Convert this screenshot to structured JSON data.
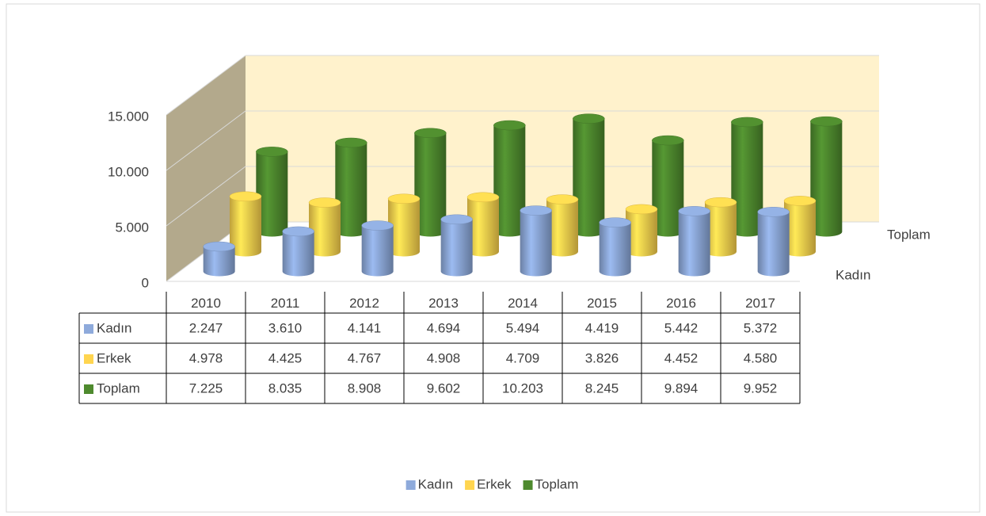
{
  "chart_data": {
    "type": "bar3d",
    "categories": [
      "2010",
      "2011",
      "2012",
      "2013",
      "2014",
      "2015",
      "2016",
      "2017"
    ],
    "series": [
      {
        "name": "Kadın",
        "color": "#8eaadb",
        "values": [
          2247,
          3610,
          4141,
          4694,
          5494,
          4419,
          5442,
          5372
        ],
        "value_labels": [
          "2.247",
          "3.610",
          "4.141",
          "4.694",
          "5.494",
          "4.419",
          "5.442",
          "5.372"
        ]
      },
      {
        "name": "Erkek",
        "color": "#ffd54f",
        "values": [
          4978,
          4425,
          4767,
          4908,
          4709,
          3826,
          4452,
          4580
        ],
        "value_labels": [
          "4.978",
          "4.425",
          "4.767",
          "4.908",
          "4.709",
          "3.826",
          "4.452",
          "4.580"
        ]
      },
      {
        "name": "Toplam",
        "color": "#4e8a2e",
        "values": [
          7225,
          8035,
          8908,
          9602,
          10203,
          8245,
          9894,
          9952
        ],
        "value_labels": [
          "7.225",
          "8.035",
          "8.908",
          "9.602",
          "10.203",
          "8.245",
          "9.894",
          "9.952"
        ]
      }
    ],
    "ylim": [
      0,
      15000
    ],
    "yticks": [
      0,
      {
        "value": 5000,
        "label": "5.000"
      },
      {
        "value": 10000,
        "label": "10.000"
      },
      {
        "value": 15000,
        "label": "15.000"
      }
    ],
    "grid": true,
    "legend": "bottom"
  }
}
